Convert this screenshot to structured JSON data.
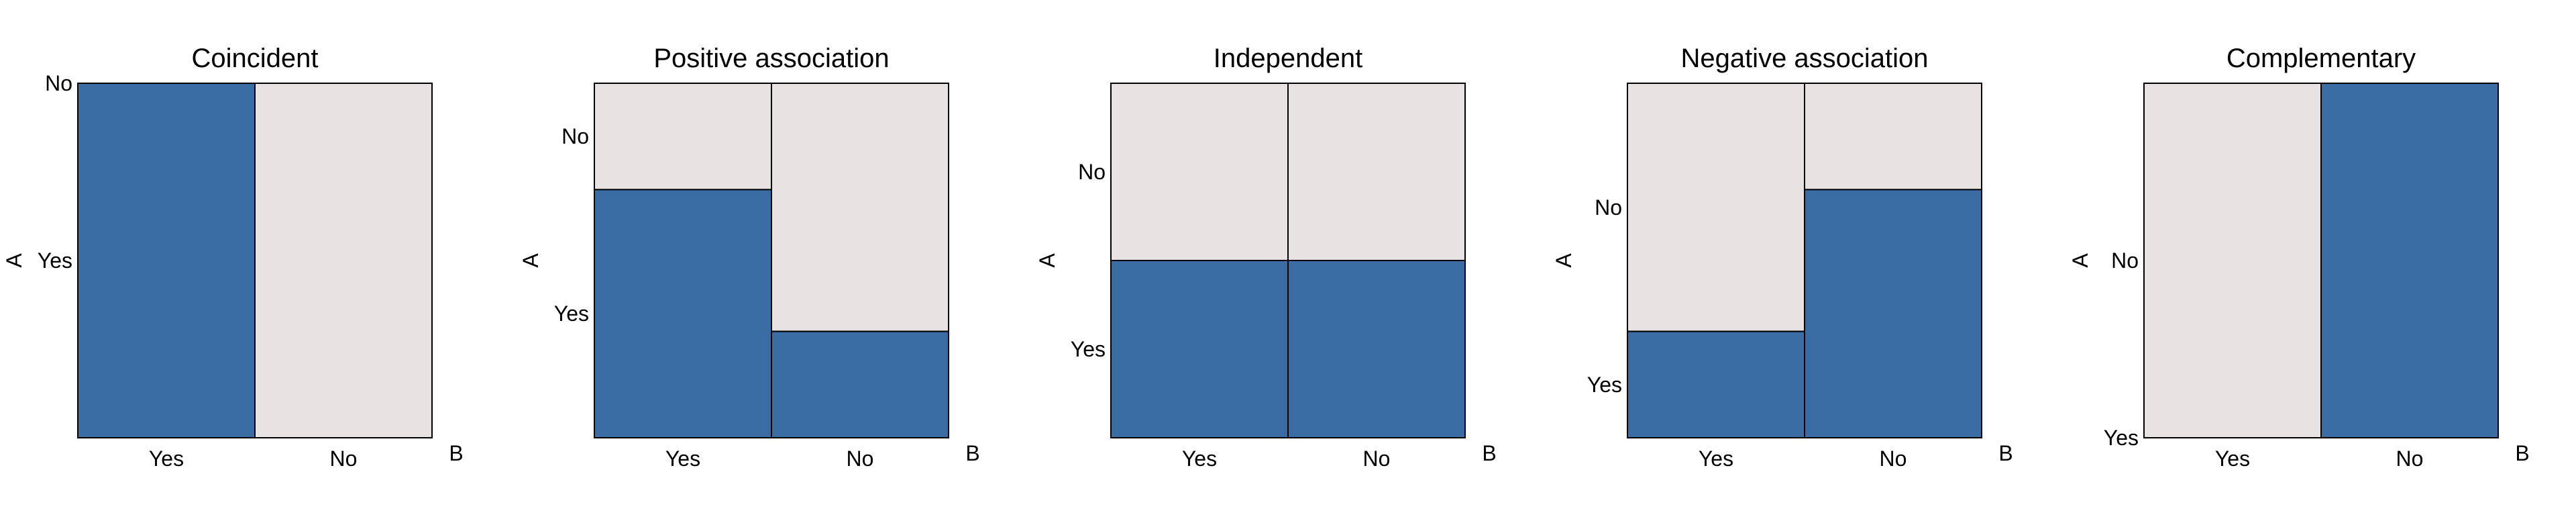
{
  "colors": {
    "yes_fill": "#3a6da4",
    "no_fill": "#e8e2e2",
    "border": "#000000"
  },
  "chart_data": [
    {
      "type": "mosaic",
      "title": "Coincident",
      "xlabel": "B",
      "ylabel": "A",
      "x_categories": [
        "Yes",
        "No"
      ],
      "y_categories": [
        "Yes",
        "No"
      ],
      "x_widths": [
        0.5,
        0.5
      ],
      "p_A_yes_given_B": [
        1.0,
        0.0
      ],
      "y_tick_labels": [
        {
          "label": "Yes",
          "value": 0.5
        },
        {
          "label": "No",
          "value": 1.0
        }
      ]
    },
    {
      "type": "mosaic",
      "title": "Positive association",
      "xlabel": "B",
      "ylabel": "A",
      "x_categories": [
        "Yes",
        "No"
      ],
      "y_categories": [
        "Yes",
        "No"
      ],
      "x_widths": [
        0.5,
        0.5
      ],
      "p_A_yes_given_B": [
        0.7,
        0.3
      ],
      "y_tick_labels": [
        {
          "label": "Yes",
          "value": 0.35
        },
        {
          "label": "No",
          "value": 0.85
        }
      ]
    },
    {
      "type": "mosaic",
      "title": "Independent",
      "xlabel": "B",
      "ylabel": "A",
      "x_categories": [
        "Yes",
        "No"
      ],
      "y_categories": [
        "Yes",
        "No"
      ],
      "x_widths": [
        0.5,
        0.5
      ],
      "p_A_yes_given_B": [
        0.5,
        0.5
      ],
      "y_tick_labels": [
        {
          "label": "Yes",
          "value": 0.25
        },
        {
          "label": "No",
          "value": 0.75
        }
      ]
    },
    {
      "type": "mosaic",
      "title": "Negative association",
      "xlabel": "B",
      "ylabel": "A",
      "x_categories": [
        "Yes",
        "No"
      ],
      "y_categories": [
        "Yes",
        "No"
      ],
      "x_widths": [
        0.5,
        0.5
      ],
      "p_A_yes_given_B": [
        0.3,
        0.7
      ],
      "y_tick_labels": [
        {
          "label": "Yes",
          "value": 0.15
        },
        {
          "label": "No",
          "value": 0.65
        }
      ]
    },
    {
      "type": "mosaic",
      "title": "Complementary",
      "xlabel": "B",
      "ylabel": "A",
      "x_categories": [
        "Yes",
        "No"
      ],
      "y_categories": [
        "Yes",
        "No"
      ],
      "x_widths": [
        0.5,
        0.5
      ],
      "p_A_yes_given_B": [
        0.0,
        1.0
      ],
      "y_tick_labels": [
        {
          "label": "Yes",
          "value": 0.0
        },
        {
          "label": "No",
          "value": 0.5
        }
      ]
    }
  ]
}
